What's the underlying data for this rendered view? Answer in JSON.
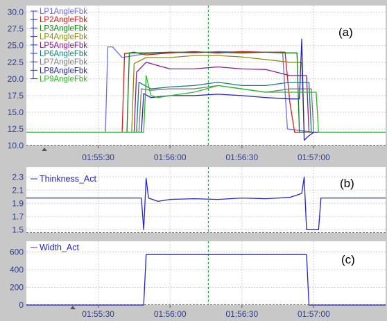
{
  "colors": {
    "background": "#c8c8c8",
    "plot_bg": "#ffffff",
    "grid": "#d2d2d2",
    "cursor": "#2e9e3e",
    "axis_text": "#2e3d8c",
    "baseline": "#2e9e3e"
  },
  "chart_data": [
    {
      "id": "a",
      "type": "line",
      "panel_label": "(a)",
      "xlim": [
        "01:55:00",
        "01:57:30"
      ],
      "x_ticks": [
        "01:55:30",
        "01:56:00",
        "01:56:30",
        "01:57:00"
      ],
      "ylim": [
        10,
        31
      ],
      "y_ticks": [
        "10.0",
        "12.5",
        "15.0",
        "17.5",
        "20.0",
        "22.5",
        "25.0",
        "27.5",
        "30.0"
      ],
      "y_tick_values": [
        10,
        12.5,
        15,
        17.5,
        20,
        22.5,
        25,
        27.5,
        30
      ],
      "cursor_x": "01:56:16",
      "grid": true,
      "legend_position": "top-left",
      "series": [
        {
          "name": "LP1AngleFbk",
          "color": "#6b6bf0",
          "x": [
            "01:55:00",
            "01:55:33",
            "01:55:34",
            "01:55:36",
            "01:55:40",
            "01:55:50",
            "01:56:00",
            "01:56:10",
            "01:56:20",
            "01:56:30",
            "01:56:40",
            "01:56:47",
            "01:56:49",
            "01:57:00",
            "01:57:30"
          ],
          "y": [
            12,
            12,
            24.8,
            24.8,
            23.2,
            23.8,
            24,
            23.9,
            24.1,
            24,
            24,
            24,
            12.5,
            12,
            12
          ]
        },
        {
          "name": "LP2AngleFbk",
          "color": "#e01818",
          "x": [
            "01:55:00",
            "01:55:40",
            "01:55:41",
            "01:55:45",
            "01:55:50",
            "01:56:00",
            "01:56:10",
            "01:56:20",
            "01:56:30",
            "01:56:40",
            "01:56:48",
            "01:56:50",
            "01:56:52",
            "01:57:30"
          ],
          "y": [
            12,
            12,
            23.8,
            24,
            23.6,
            23.9,
            24.1,
            23.9,
            24.1,
            24,
            24,
            16.5,
            12,
            12
          ]
        },
        {
          "name": "LP3AngleFbk",
          "color": "#127a12",
          "x": [
            "01:55:00",
            "01:55:42",
            "01:55:43",
            "01:55:50",
            "01:56:00",
            "01:56:10",
            "01:56:20",
            "01:56:30",
            "01:56:40",
            "01:56:48",
            "01:56:53",
            "01:56:54",
            "01:57:30"
          ],
          "y": [
            12,
            12,
            23.9,
            23.9,
            24,
            24,
            24,
            23.9,
            24,
            23.9,
            23.9,
            12,
            12
          ]
        },
        {
          "name": "LP4AngleFbk",
          "color": "#8a8a12",
          "x": [
            "01:55:00",
            "01:55:44",
            "01:55:45",
            "01:55:50",
            "01:56:00",
            "01:56:10",
            "01:56:20",
            "01:56:30",
            "01:56:40",
            "01:56:50",
            "01:56:55",
            "01:56:56",
            "01:57:30"
          ],
          "y": [
            12,
            12,
            22.3,
            23.2,
            23.2,
            23.5,
            23.5,
            23.3,
            22.9,
            22.5,
            22.5,
            12,
            12
          ]
        },
        {
          "name": "LP5AngleFbk",
          "color": "#8b1a8b",
          "x": [
            "01:55:00",
            "01:55:45",
            "01:55:46",
            "01:55:50",
            "01:55:55",
            "01:56:00",
            "01:56:10",
            "01:56:20",
            "01:56:30",
            "01:56:40",
            "01:56:50",
            "01:56:57",
            "01:56:58",
            "01:57:30"
          ],
          "y": [
            12,
            12,
            21,
            22.5,
            22,
            21.5,
            21.5,
            21.8,
            21.5,
            21.4,
            20.5,
            20.5,
            12,
            12
          ]
        },
        {
          "name": "LP6AngleFbk",
          "color": "#157a7a",
          "x": [
            "01:55:00",
            "01:55:46",
            "01:55:47",
            "01:55:52",
            "01:56:00",
            "01:56:10",
            "01:56:20",
            "01:56:30",
            "01:56:40",
            "01:56:50",
            "01:56:58",
            "01:56:59",
            "01:57:30"
          ],
          "y": [
            12,
            12,
            19.5,
            18.5,
            18.8,
            19,
            19.5,
            19,
            19,
            19.5,
            19.5,
            12,
            12
          ]
        },
        {
          "name": "LP7AngleFbk",
          "color": "#7a7a7a",
          "x": [
            "01:55:00",
            "01:55:47",
            "01:55:48",
            "01:55:52",
            "01:56:00",
            "01:56:10",
            "01:56:20",
            "01:56:30",
            "01:56:40",
            "01:56:50",
            "01:56:59",
            "01:57:00",
            "01:57:30"
          ],
          "y": [
            12,
            12,
            18.5,
            18.3,
            18.5,
            18.5,
            19,
            18.5,
            18,
            18.5,
            18.5,
            12,
            12
          ]
        },
        {
          "name": "LP8AngleFbk",
          "color": "#2323b4",
          "x": [
            "01:55:00",
            "01:55:48",
            "01:55:49",
            "01:55:52",
            "01:56:00",
            "01:56:10",
            "01:56:20",
            "01:56:30",
            "01:56:40",
            "01:56:50",
            "01:56:54",
            "01:56:55",
            "01:56:56",
            "01:56:58",
            "01:57:00",
            "01:57:30"
          ],
          "y": [
            12,
            12,
            17.8,
            17.2,
            17.5,
            17.5,
            17.7,
            17.5,
            17.2,
            17,
            17,
            26,
            10.8,
            11.5,
            12,
            12
          ]
        },
        {
          "name": "LP9AngleFbk",
          "color": "#2ab82a",
          "x": [
            "01:55:00",
            "01:55:49",
            "01:55:50",
            "01:55:52",
            "01:55:55",
            "01:56:00",
            "01:56:10",
            "01:56:20",
            "01:56:30",
            "01:56:40",
            "01:56:50",
            "01:57:01",
            "01:57:02",
            "01:57:30"
          ],
          "y": [
            12,
            12,
            20.5,
            17.5,
            17.2,
            17.5,
            18,
            19,
            18.5,
            18,
            18,
            18,
            12,
            12
          ]
        }
      ]
    },
    {
      "id": "b",
      "type": "line",
      "panel_label": "(b)",
      "xlim": [
        "01:55:00",
        "01:57:30"
      ],
      "ylim": [
        1.45,
        2.45
      ],
      "y_ticks": [
        "1.5",
        "1.7",
        "1.9",
        "2.1",
        "2.3"
      ],
      "y_tick_values": [
        1.5,
        1.7,
        1.9,
        2.1,
        2.3
      ],
      "cursor_x": "01:56:16",
      "grid": true,
      "legend_position": "top-left",
      "series": [
        {
          "name": "Thinkness_Act",
          "color": "#2323d4",
          "x": [
            "01:55:00",
            "01:55:48",
            "01:55:49",
            "01:55:50",
            "01:55:51",
            "01:55:55",
            "01:56:00",
            "01:56:10",
            "01:56:20",
            "01:56:30",
            "01:56:40",
            "01:56:50",
            "01:56:55",
            "01:56:56",
            "01:56:57",
            "01:57:02",
            "01:57:03",
            "01:57:30"
          ],
          "y": [
            1.98,
            1.98,
            1.5,
            2.28,
            1.98,
            1.93,
            1.96,
            1.97,
            1.96,
            1.98,
            1.97,
            1.99,
            2.05,
            2.3,
            1.5,
            1.5,
            1.98,
            1.98
          ]
        }
      ]
    },
    {
      "id": "c",
      "type": "line",
      "panel_label": "(c)",
      "xlim": [
        "01:55:00",
        "01:57:30"
      ],
      "x_ticks": [
        "01:55:30",
        "01:56:00",
        "01:56:30",
        "01:57:00"
      ],
      "ylim": [
        0,
        720
      ],
      "y_ticks": [
        "0",
        "200",
        "400",
        "600"
      ],
      "y_tick_values": [
        0,
        200,
        400,
        600
      ],
      "cursor_x": "01:56:16",
      "grid": true,
      "legend_position": "top-left",
      "series": [
        {
          "name": "Width_Act",
          "color": "#2323d4",
          "x": [
            "01:55:00",
            "01:55:49",
            "01:55:50",
            "01:56:00",
            "01:56:30",
            "01:56:57",
            "01:56:58",
            "01:57:30"
          ],
          "y": [
            0,
            0,
            570,
            570,
            570,
            570,
            0,
            0
          ]
        }
      ]
    }
  ]
}
